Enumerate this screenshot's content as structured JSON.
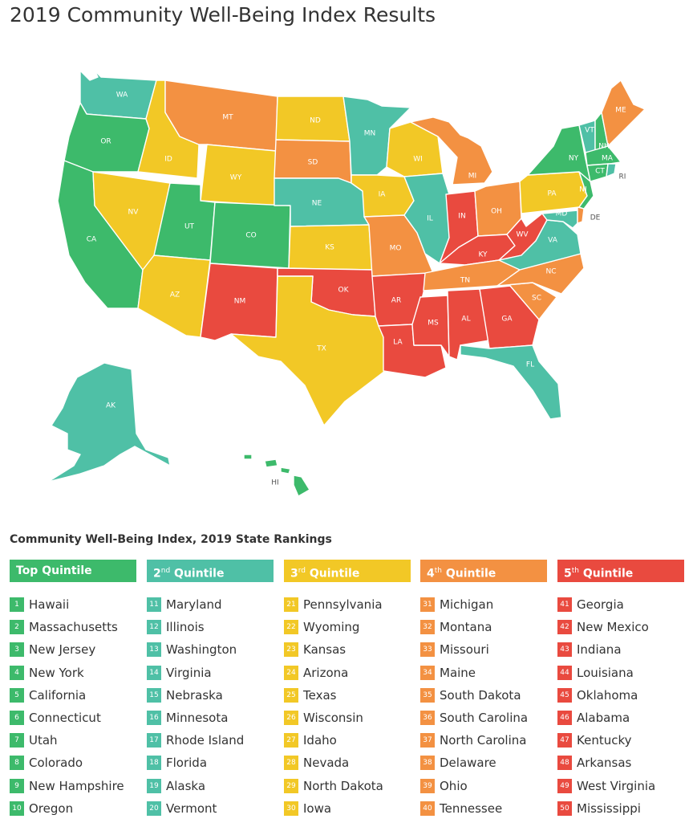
{
  "title": "2019 Community Well-Being Index Results",
  "colors": {
    "top": "#3dba6b",
    "second": "#4fc0a6",
    "third": "#f2c826",
    "fourth": "#f39142",
    "fifth": "#e94a3f"
  },
  "map": {
    "state_labels": {
      "WA": "WA",
      "OR": "OR",
      "CA": "CA",
      "ID": "ID",
      "NV": "NV",
      "MT": "MT",
      "WY": "WY",
      "UT": "UT",
      "AZ": "AZ",
      "CO": "CO",
      "NM": "NM",
      "ND": "ND",
      "SD": "SD",
      "NE": "NE",
      "KS": "KS",
      "OK": "OK",
      "TX": "TX",
      "MN": "MN",
      "IA": "IA",
      "MO": "MO",
      "AR": "AR",
      "LA": "LA",
      "WI": "WI",
      "IL": "IL",
      "MS": "MS",
      "AL": "AL",
      "MI": "MI",
      "IN": "IN",
      "KY": "KY",
      "TN": "TN",
      "OH": "OH",
      "WV": "WV",
      "VA": "VA",
      "NC": "NC",
      "SC": "SC",
      "GA": "GA",
      "FL": "FL",
      "PA": "PA",
      "NY": "NY",
      "VT": "VT",
      "NH": "NH",
      "ME": "ME",
      "MA": "MA",
      "CT": "CT",
      "RI": "RI",
      "NJ": "NJ",
      "DE": "DE",
      "MD": "MD",
      "AK": "AK",
      "HI": "HI"
    }
  },
  "rankings": {
    "title": "Community Well-Being Index, 2019 State Rankings",
    "quintiles": [
      {
        "label": "Top Quintile",
        "ord": "",
        "rest": "",
        "color": "#3dba6b",
        "states": [
          {
            "rank": "1",
            "name": "Hawaii"
          },
          {
            "rank": "2",
            "name": "Massachusetts"
          },
          {
            "rank": "3",
            "name": "New Jersey"
          },
          {
            "rank": "4",
            "name": "New York"
          },
          {
            "rank": "5",
            "name": "California"
          },
          {
            "rank": "6",
            "name": "Connecticut"
          },
          {
            "rank": "7",
            "name": "Utah"
          },
          {
            "rank": "8",
            "name": "Colorado"
          },
          {
            "rank": "9",
            "name": "New Hampshire"
          },
          {
            "rank": "10",
            "name": "Oregon"
          }
        ]
      },
      {
        "label": "2",
        "ord": "nd",
        "rest": " Quintile",
        "color": "#4fc0a6",
        "states": [
          {
            "rank": "11",
            "name": "Maryland"
          },
          {
            "rank": "12",
            "name": "Illinois"
          },
          {
            "rank": "13",
            "name": "Washington"
          },
          {
            "rank": "14",
            "name": "Virginia"
          },
          {
            "rank": "15",
            "name": "Nebraska"
          },
          {
            "rank": "16",
            "name": "Minnesota"
          },
          {
            "rank": "17",
            "name": "Rhode Island"
          },
          {
            "rank": "18",
            "name": "Florida"
          },
          {
            "rank": "19",
            "name": "Alaska"
          },
          {
            "rank": "20",
            "name": "Vermont"
          }
        ]
      },
      {
        "label": "3",
        "ord": "rd",
        "rest": " Quintile",
        "color": "#f2c826",
        "states": [
          {
            "rank": "21",
            "name": "Pennsylvania"
          },
          {
            "rank": "22",
            "name": "Wyoming"
          },
          {
            "rank": "23",
            "name": "Kansas"
          },
          {
            "rank": "24",
            "name": "Arizona"
          },
          {
            "rank": "25",
            "name": "Texas"
          },
          {
            "rank": "26",
            "name": "Wisconsin"
          },
          {
            "rank": "27",
            "name": "Idaho"
          },
          {
            "rank": "28",
            "name": "Nevada"
          },
          {
            "rank": "29",
            "name": "North Dakota"
          },
          {
            "rank": "30",
            "name": "Iowa"
          }
        ]
      },
      {
        "label": "4",
        "ord": "th",
        "rest": " Quintile",
        "color": "#f39142",
        "states": [
          {
            "rank": "31",
            "name": "Michigan"
          },
          {
            "rank": "32",
            "name": "Montana"
          },
          {
            "rank": "33",
            "name": "Missouri"
          },
          {
            "rank": "34",
            "name": "Maine"
          },
          {
            "rank": "35",
            "name": "South Dakota"
          },
          {
            "rank": "36",
            "name": "South Carolina"
          },
          {
            "rank": "37",
            "name": "North Carolina"
          },
          {
            "rank": "38",
            "name": "Delaware"
          },
          {
            "rank": "39",
            "name": "Ohio"
          },
          {
            "rank": "40",
            "name": "Tennessee"
          }
        ]
      },
      {
        "label": "5",
        "ord": "th",
        "rest": " Quintile",
        "color": "#e94a3f",
        "states": [
          {
            "rank": "41",
            "name": "Georgia"
          },
          {
            "rank": "42",
            "name": "New Mexico"
          },
          {
            "rank": "43",
            "name": "Indiana"
          },
          {
            "rank": "44",
            "name": "Louisiana"
          },
          {
            "rank": "45",
            "name": "Oklahoma"
          },
          {
            "rank": "46",
            "name": "Alabama"
          },
          {
            "rank": "47",
            "name": "Kentucky"
          },
          {
            "rank": "48",
            "name": "Arkansas"
          },
          {
            "rank": "49",
            "name": "West Virginia"
          },
          {
            "rank": "50",
            "name": "Mississippi"
          }
        ]
      }
    ]
  }
}
